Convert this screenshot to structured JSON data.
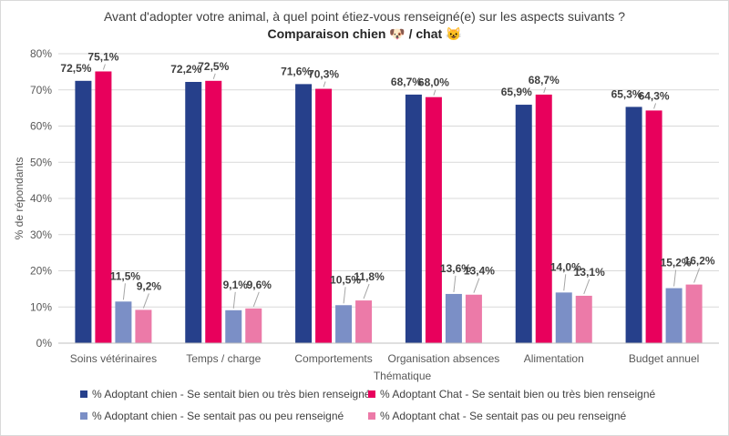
{
  "chart_data": {
    "type": "bar",
    "title_line1": "Avant d'adopter votre animal, à quel point étiez-vous renseigné(e) sur les aspects suivants ?",
    "title_line2": "Comparaison chien 🐶 / chat 😺",
    "xlabel": "Thématique",
    "ylabel": "% de répondants",
    "ylim": [
      0,
      80
    ],
    "yticks": [
      "0%",
      "10%",
      "20%",
      "30%",
      "40%",
      "50%",
      "60%",
      "70%",
      "80%"
    ],
    "ytick_values": [
      0,
      10,
      20,
      30,
      40,
      50,
      60,
      70,
      80
    ],
    "grid": true,
    "legend_position": "bottom",
    "categories": [
      "Soins vétérinaires",
      "Temps / charge",
      "Comportements",
      "Organisation absences",
      "Alimentation",
      "Budget annuel"
    ],
    "series": [
      {
        "name": "% Adoptant chien - Se sentait bien ou très bien renseigné",
        "color": "#26408b",
        "values": [
          72.5,
          72.2,
          71.6,
          68.7,
          65.9,
          65.3
        ],
        "labels": [
          "72,5%",
          "72,2%",
          "71,6%",
          "68,7%",
          "65,9%",
          "65,3%"
        ]
      },
      {
        "name": "% Adoptant Chat - Se sentait bien ou très bien renseigné",
        "color": "#e8005c",
        "values": [
          75.1,
          72.5,
          70.3,
          68.0,
          68.7,
          64.3
        ],
        "labels": [
          "75,1%",
          "72,5%",
          "70,3%",
          "68,0%",
          "68,7%",
          "64,3%"
        ]
      },
      {
        "name": "% Adoptant chien - Se sentait pas ou peu renseigné",
        "color": "#7b8fc6",
        "values": [
          11.5,
          9.1,
          10.5,
          13.6,
          14.0,
          15.2
        ],
        "labels": [
          "11,5%",
          "9,1%",
          "10,5%",
          "13,6%",
          "14,0%",
          "15,2%"
        ]
      },
      {
        "name": "% Adoptant chat - Se sentait pas ou peu renseigné",
        "color": "#ec7aa8",
        "values": [
          9.2,
          9.6,
          11.8,
          13.4,
          13.1,
          16.2
        ],
        "labels": [
          "9,2%",
          "9,6%",
          "11,8%",
          "13,4%",
          "13,1%",
          "16,2%"
        ]
      }
    ]
  }
}
